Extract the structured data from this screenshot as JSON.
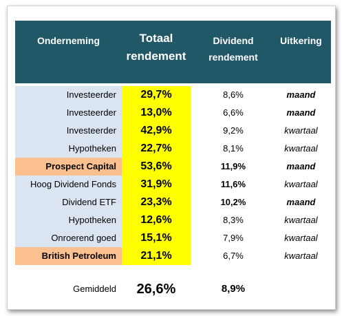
{
  "table": {
    "headers": {
      "company": "Onderneming",
      "total_line1": "Totaal",
      "total_line2": "rendement",
      "dividend_line1": "Dividend",
      "dividend_line2": "rendement",
      "payout": "Uitkering"
    },
    "rows": [
      {
        "name": "Investeerder",
        "total": "29,7%",
        "dividend": "8,6%",
        "payout": "maand",
        "highlight": false,
        "div_bold": false,
        "payout_bold": true
      },
      {
        "name": "Investeerder",
        "total": "13,0%",
        "dividend": "6,6%",
        "payout": "maand",
        "highlight": false,
        "div_bold": false,
        "payout_bold": true
      },
      {
        "name": "Investeerder",
        "total": "42,9%",
        "dividend": "9,2%",
        "payout": "kwartaal",
        "highlight": false,
        "div_bold": false,
        "payout_bold": false
      },
      {
        "name": "Hypotheken",
        "total": "22,7%",
        "dividend": "8,1%",
        "payout": "kwartaal",
        "highlight": false,
        "div_bold": false,
        "payout_bold": false
      },
      {
        "name": "Prospect Capital",
        "total": "53,6%",
        "dividend": "11,9%",
        "payout": "maand",
        "highlight": true,
        "div_bold": true,
        "payout_bold": true
      },
      {
        "name": "Hoog Dividend Fonds",
        "total": "31,9%",
        "dividend": "11,6%",
        "payout": "kwartaal",
        "highlight": false,
        "div_bold": true,
        "payout_bold": false
      },
      {
        "name": "Dividend ETF",
        "total": "23,3%",
        "dividend": "10,2%",
        "payout": "maand",
        "highlight": false,
        "div_bold": true,
        "payout_bold": true
      },
      {
        "name": "Hypotheken",
        "total": "12,6%",
        "dividend": "8,3%",
        "payout": "kwartaal",
        "highlight": false,
        "div_bold": false,
        "payout_bold": false
      },
      {
        "name": "Onroerend goed",
        "total": "15,1%",
        "dividend": "7,9%",
        "payout": "kwartaal",
        "highlight": false,
        "div_bold": false,
        "payout_bold": false
      },
      {
        "name": "British Petroleum",
        "total": "21,1%",
        "dividend": "6,7%",
        "payout": "kwartaal",
        "highlight": true,
        "div_bold": false,
        "payout_bold": false
      }
    ],
    "average": {
      "label": "Gemiddeld",
      "total": "26,6%",
      "dividend": "8,9%"
    }
  },
  "colors": {
    "header_bg": "#215868",
    "name_bg": "#dbe5f1",
    "highlight_bg": "#fac090",
    "total_bg": "#ffff00"
  }
}
